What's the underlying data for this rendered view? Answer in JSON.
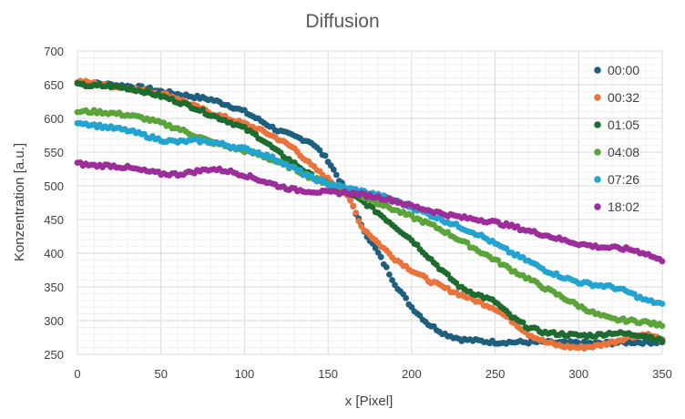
{
  "chart_data": {
    "type": "scatter",
    "title": "Diffusion",
    "xlabel": "x [Pixel]",
    "ylabel": "Konzentration [a.u.]",
    "xlim": [
      0,
      350
    ],
    "ylim": [
      250,
      700
    ],
    "xticks": [
      0,
      50,
      100,
      150,
      200,
      250,
      300,
      350
    ],
    "yticks": [
      250,
      300,
      350,
      400,
      450,
      500,
      550,
      600,
      650,
      700
    ],
    "grid": true,
    "legend_position": "right",
    "series": [
      {
        "name": "00:00",
        "color": "#1f5f7e",
        "points": [
          [
            0,
            652
          ],
          [
            10,
            652
          ],
          [
            20,
            650
          ],
          [
            30,
            648
          ],
          [
            40,
            645
          ],
          [
            50,
            640
          ],
          [
            60,
            636
          ],
          [
            70,
            632
          ],
          [
            80,
            628
          ],
          [
            90,
            620
          ],
          [
            100,
            610
          ],
          [
            110,
            596
          ],
          [
            120,
            582
          ],
          [
            130,
            573
          ],
          [
            140,
            565
          ],
          [
            150,
            538
          ],
          [
            160,
            495
          ],
          [
            165,
            470
          ],
          [
            170,
            440
          ],
          [
            180,
            400
          ],
          [
            190,
            355
          ],
          [
            200,
            320
          ],
          [
            210,
            295
          ],
          [
            220,
            280
          ],
          [
            230,
            272
          ],
          [
            240,
            270
          ],
          [
            250,
            268
          ],
          [
            260,
            268
          ],
          [
            270,
            268
          ],
          [
            280,
            268
          ],
          [
            290,
            267
          ],
          [
            300,
            267
          ],
          [
            310,
            266
          ],
          [
            320,
            267
          ],
          [
            330,
            268
          ],
          [
            340,
            268
          ],
          [
            350,
            268
          ]
        ]
      },
      {
        "name": "00:32",
        "color": "#e9733a",
        "points": [
          [
            0,
            655
          ],
          [
            10,
            652
          ],
          [
            20,
            648
          ],
          [
            30,
            645
          ],
          [
            40,
            641
          ],
          [
            50,
            637
          ],
          [
            60,
            630
          ],
          [
            70,
            618
          ],
          [
            80,
            608
          ],
          [
            90,
            600
          ],
          [
            100,
            592
          ],
          [
            110,
            582
          ],
          [
            120,
            570
          ],
          [
            130,
            555
          ],
          [
            140,
            530
          ],
          [
            150,
            510
          ],
          [
            160,
            490
          ],
          [
            165,
            470
          ],
          [
            170,
            440
          ],
          [
            180,
            415
          ],
          [
            190,
            392
          ],
          [
            200,
            375
          ],
          [
            210,
            360
          ],
          [
            220,
            348
          ],
          [
            230,
            338
          ],
          [
            240,
            328
          ],
          [
            250,
            318
          ],
          [
            260,
            300
          ],
          [
            270,
            280
          ],
          [
            280,
            268
          ],
          [
            290,
            262
          ],
          [
            300,
            260
          ],
          [
            310,
            262
          ],
          [
            320,
            268
          ],
          [
            330,
            276
          ],
          [
            340,
            280
          ],
          [
            350,
            272
          ]
        ]
      },
      {
        "name": "01:05",
        "color": "#1d6b2e",
        "points": [
          [
            0,
            650
          ],
          [
            10,
            648
          ],
          [
            20,
            648
          ],
          [
            30,
            645
          ],
          [
            40,
            640
          ],
          [
            50,
            633
          ],
          [
            60,
            625
          ],
          [
            70,
            616
          ],
          [
            80,
            605
          ],
          [
            90,
            596
          ],
          [
            100,
            585
          ],
          [
            110,
            570
          ],
          [
            120,
            550
          ],
          [
            130,
            533
          ],
          [
            140,
            515
          ],
          [
            150,
            502
          ],
          [
            160,
            492
          ],
          [
            170,
            478
          ],
          [
            180,
            460
          ],
          [
            190,
            440
          ],
          [
            200,
            420
          ],
          [
            210,
            395
          ],
          [
            220,
            370
          ],
          [
            230,
            348
          ],
          [
            240,
            338
          ],
          [
            250,
            328
          ],
          [
            260,
            305
          ],
          [
            270,
            290
          ],
          [
            280,
            282
          ],
          [
            290,
            280
          ],
          [
            300,
            278
          ],
          [
            310,
            278
          ],
          [
            320,
            282
          ],
          [
            330,
            280
          ],
          [
            340,
            278
          ],
          [
            350,
            270
          ]
        ]
      },
      {
        "name": "04:08",
        "color": "#5aa43a",
        "points": [
          [
            0,
            610
          ],
          [
            10,
            610
          ],
          [
            20,
            608
          ],
          [
            30,
            605
          ],
          [
            40,
            600
          ],
          [
            50,
            593
          ],
          [
            60,
            585
          ],
          [
            70,
            575
          ],
          [
            80,
            565
          ],
          [
            90,
            558
          ],
          [
            100,
            552
          ],
          [
            110,
            545
          ],
          [
            120,
            535
          ],
          [
            130,
            525
          ],
          [
            140,
            512
          ],
          [
            150,
            504
          ],
          [
            160,
            495
          ],
          [
            170,
            485
          ],
          [
            180,
            475
          ],
          [
            190,
            464
          ],
          [
            200,
            454
          ],
          [
            210,
            444
          ],
          [
            220,
            432
          ],
          [
            230,
            418
          ],
          [
            240,
            404
          ],
          [
            250,
            390
          ],
          [
            260,
            375
          ],
          [
            270,
            362
          ],
          [
            280,
            348
          ],
          [
            290,
            335
          ],
          [
            300,
            322
          ],
          [
            310,
            310
          ],
          [
            320,
            302
          ],
          [
            330,
            300
          ],
          [
            340,
            298
          ],
          [
            350,
            292
          ]
        ]
      },
      {
        "name": "07:26",
        "color": "#22a3d0",
        "points": [
          [
            0,
            595
          ],
          [
            10,
            590
          ],
          [
            20,
            586
          ],
          [
            30,
            582
          ],
          [
            40,
            575
          ],
          [
            50,
            568
          ],
          [
            60,
            565
          ],
          [
            70,
            567
          ],
          [
            80,
            565
          ],
          [
            90,
            560
          ],
          [
            100,
            555
          ],
          [
            110,
            548
          ],
          [
            120,
            538
          ],
          [
            130,
            525
          ],
          [
            140,
            512
          ],
          [
            150,
            503
          ],
          [
            160,
            497
          ],
          [
            170,
            492
          ],
          [
            180,
            486
          ],
          [
            190,
            478
          ],
          [
            200,
            468
          ],
          [
            210,
            458
          ],
          [
            220,
            448
          ],
          [
            230,
            438
          ],
          [
            240,
            428
          ],
          [
            250,
            414
          ],
          [
            260,
            400
          ],
          [
            270,
            388
          ],
          [
            280,
            375
          ],
          [
            290,
            365
          ],
          [
            300,
            357
          ],
          [
            310,
            353
          ],
          [
            320,
            350
          ],
          [
            330,
            342
          ],
          [
            340,
            330
          ],
          [
            350,
            325
          ]
        ]
      },
      {
        "name": "18:02",
        "color": "#9c2d9a",
        "points": [
          [
            0,
            533
          ],
          [
            10,
            530
          ],
          [
            20,
            530
          ],
          [
            30,
            527
          ],
          [
            40,
            522
          ],
          [
            50,
            518
          ],
          [
            60,
            517
          ],
          [
            70,
            521
          ],
          [
            80,
            525
          ],
          [
            90,
            522
          ],
          [
            100,
            516
          ],
          [
            110,
            508
          ],
          [
            120,
            500
          ],
          [
            130,
            494
          ],
          [
            140,
            492
          ],
          [
            150,
            490
          ],
          [
            160,
            490
          ],
          [
            170,
            487
          ],
          [
            180,
            483
          ],
          [
            190,
            478
          ],
          [
            200,
            470
          ],
          [
            210,
            464
          ],
          [
            220,
            458
          ],
          [
            230,
            453
          ],
          [
            240,
            450
          ],
          [
            250,
            446
          ],
          [
            260,
            440
          ],
          [
            270,
            433
          ],
          [
            280,
            427
          ],
          [
            290,
            420
          ],
          [
            300,
            414
          ],
          [
            310,
            410
          ],
          [
            320,
            408
          ],
          [
            330,
            406
          ],
          [
            340,
            400
          ],
          [
            350,
            388
          ]
        ]
      }
    ]
  }
}
